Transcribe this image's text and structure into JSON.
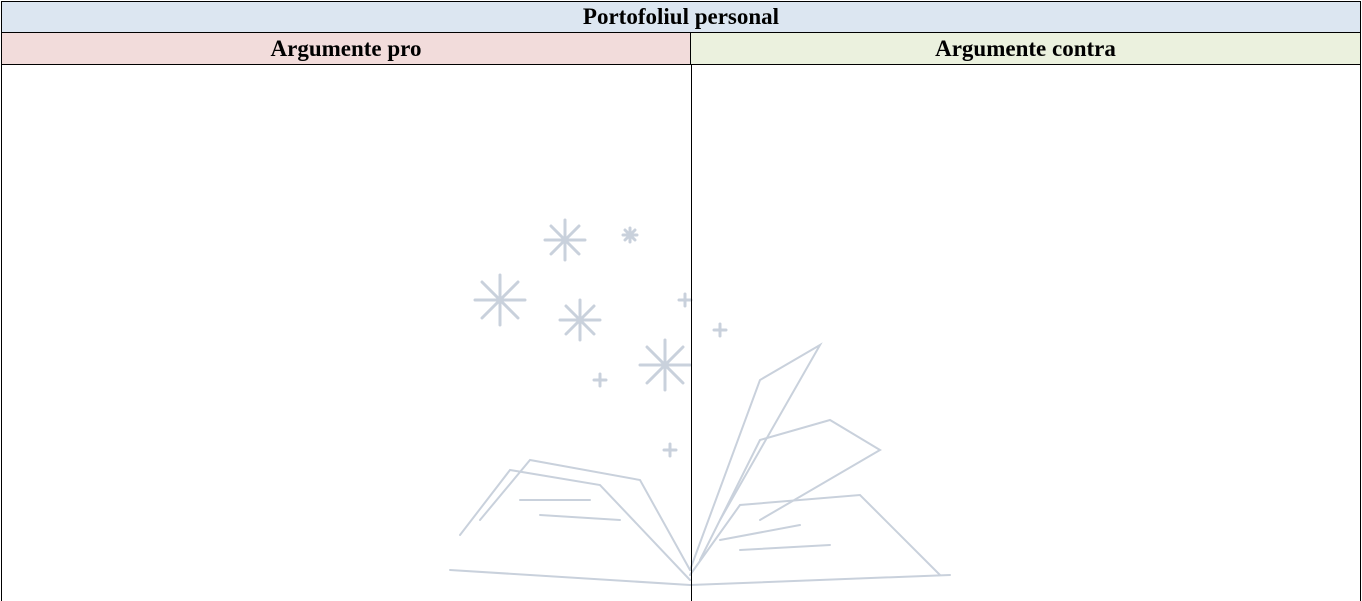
{
  "table": {
    "title": "Portofoliul personal",
    "headers": [
      "Argumente pro",
      "Argumente contra"
    ]
  }
}
